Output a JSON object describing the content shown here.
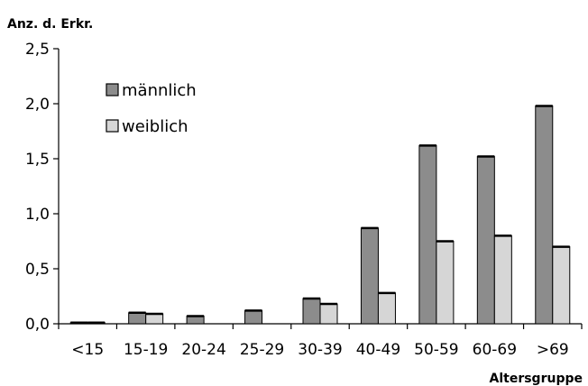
{
  "chart_data": {
    "type": "bar",
    "ylabel": "Anz. d. Erkr.",
    "xlabel": "Altersgruppe",
    "categories": [
      "<15",
      "15-19",
      "20-24",
      "25-29",
      "30-39",
      "40-49",
      "50-59",
      "60-69",
      ">69"
    ],
    "series": [
      {
        "name": "männlich",
        "color": "#8c8c8c",
        "values": [
          0.01,
          0.1,
          0.07,
          0.12,
          0.23,
          0.87,
          1.62,
          1.52,
          1.98
        ]
      },
      {
        "name": "weiblich",
        "color": "#d6d6d6",
        "values": [
          0.01,
          0.09,
          0,
          0,
          0.18,
          0.28,
          0.75,
          0.8,
          0.7
        ]
      }
    ],
    "ylim": [
      0,
      2.5
    ],
    "yticks": [
      "0,0",
      "0,5",
      "1,0",
      "1,5",
      "2,0",
      "2,5"
    ],
    "grid": false,
    "legend_position": "top-left"
  }
}
